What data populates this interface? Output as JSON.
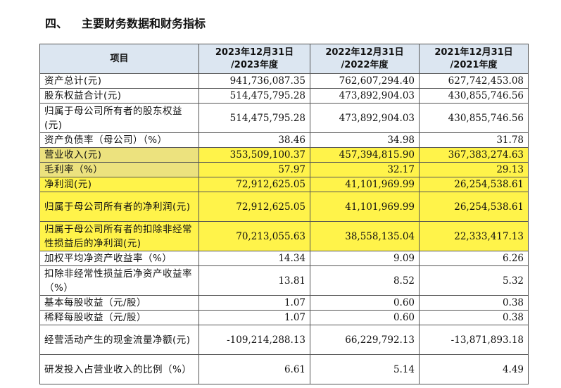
{
  "section": {
    "number": "四、",
    "title": "主要财务数据和财务指标"
  },
  "table": {
    "headers": [
      {
        "line1": "项目",
        "line2": ""
      },
      {
        "line1": "2023年12月31日",
        "line2": "/2023年度"
      },
      {
        "line1": "2022年12月31日",
        "line2": "/2022年度"
      },
      {
        "line1": "2021年12月31日",
        "line2": "/2021年度"
      }
    ],
    "rows": [
      {
        "label": "资产总计(元)",
        "values": [
          "941,736,087.35",
          "762,607,294.40",
          "627,742,453.08"
        ]
      },
      {
        "label": "股东权益合计(元)",
        "values": [
          "514,475,795.28",
          "473,892,904.03",
          "430,855,746.56"
        ]
      },
      {
        "label": "归属于母公司所有者的股东权益(元)",
        "values": [
          "514,475,795.28",
          "473,892,904.03",
          "430,855,746.56"
        ]
      },
      {
        "label": "资产负债率（母公司）（%）",
        "values": [
          "38.46",
          "34.98",
          "31.78"
        ]
      },
      {
        "label": "营业收入(元)",
        "values": [
          "353,509,100.37",
          "457,394,815.90",
          "367,383,274.63"
        ]
      },
      {
        "label": "毛利率（%）",
        "values": [
          "57.97",
          "32.17",
          "29.13"
        ]
      },
      {
        "label": "净利润(元)",
        "values": [
          "72,912,625.05",
          "41,101,969.99",
          "26,254,538.61"
        ]
      },
      {
        "label": "归属于母公司所有者的净利润(元)",
        "values": [
          "72,912,625.05",
          "41,101,969.99",
          "26,254,538.61"
        ]
      },
      {
        "label": "归属于母公司所有者的扣除非经常性损益后的净利润(元)",
        "values": [
          "70,213,055.63",
          "38,558,135.04",
          "22,333,417.13"
        ]
      },
      {
        "label": "加权平均净资产收益率（%）",
        "values": [
          "14.34",
          "9.09",
          "6.26"
        ]
      },
      {
        "label": "扣除非经常性损益后净资产收益率（%）",
        "values": [
          "13.81",
          "8.52",
          "5.32"
        ]
      },
      {
        "label": "基本每股收益（元/股）",
        "values": [
          "1.07",
          "0.60",
          "0.38"
        ]
      },
      {
        "label": "稀释每股收益（元/股）",
        "values": [
          "1.07",
          "0.60",
          "0.38"
        ]
      },
      {
        "label": "经营活动产生的现金流量净额(元)",
        "values": [
          "-109,214,288.13",
          "66,229,792.13",
          "-13,871,893.18"
        ]
      },
      {
        "label": "研发投入占营业收入的比例（%）",
        "values": [
          "6.61",
          "5.14",
          "4.49"
        ]
      }
    ]
  },
  "colors": {
    "header_background": "#dce6f1",
    "highlight": "#fff34a",
    "highlight_label": "#ece27e",
    "border": "#555555"
  }
}
